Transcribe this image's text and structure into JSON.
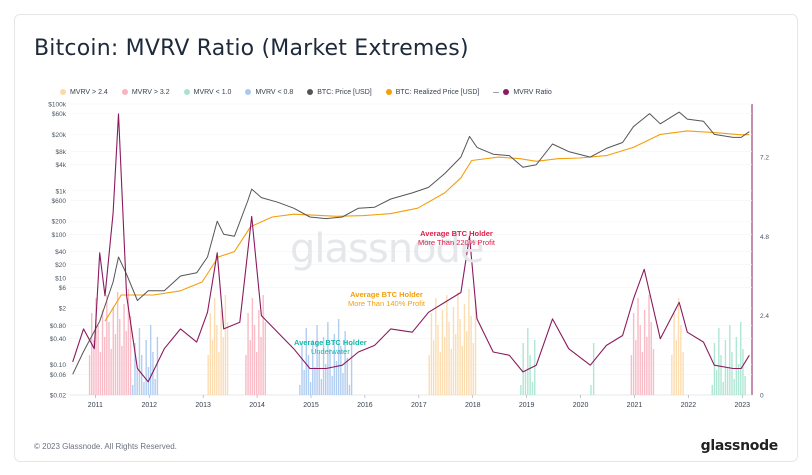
{
  "title": "Bitcoin: MVRV Ratio (Market Extremes)",
  "legend": [
    {
      "label": "MVRV > 2.4",
      "color": "#fcd9a8"
    },
    {
      "label": "MVRV > 3.2",
      "color": "#f8b4c0"
    },
    {
      "label": "MVRV < 1.0",
      "color": "#a7e3cf"
    },
    {
      "label": "MVRV < 0.8",
      "color": "#a9c8f0"
    },
    {
      "label": "BTC: Price [USD]",
      "color": "#555555"
    },
    {
      "label": "BTC: Realized Price [USD]",
      "color": "#f59e0b"
    },
    {
      "label": "MVRV Ratio",
      "color": "#8b1a5e"
    }
  ],
  "watermark": "glassnode",
  "annotations": {
    "high": "Average BTC Holder\nMore Than 220% Profit",
    "mid": "Average BTC Holder\nMore Than 140% Profit",
    "low": "Average BTC Holder\nUnderwater"
  },
  "footer": "© 2023 Glassnode. All Rights Reserved.",
  "brand": "glassnode",
  "chart_data": {
    "type": "line",
    "x_ticks": [
      "2011",
      "2012",
      "2013",
      "2014",
      "2015",
      "2016",
      "2017",
      "2018",
      "2019",
      "2020",
      "2021",
      "2022",
      "2023"
    ],
    "y_left_ticks": [
      "$100k",
      "$60k",
      "$20k",
      "$8k",
      "$4k",
      "$1k",
      "$600",
      "$200",
      "$100",
      "$40",
      "$20",
      "$10",
      "$6",
      "$2",
      "$0.80",
      "$0.40",
      "$0.10",
      "$0.06",
      "$0.02"
    ],
    "y_left_scale": "log",
    "y_right_ticks": [
      "7.2",
      "4.8",
      "2.4",
      "0"
    ],
    "y_right_range": [
      0,
      8.8
    ],
    "x_range": [
      2010.55,
      2023.2
    ],
    "series": [
      {
        "name": "BTC: Price [USD]",
        "color": "#555555",
        "points": [
          [
            2010.6,
            0.06
          ],
          [
            2010.8,
            0.2
          ],
          [
            2011.1,
            1
          ],
          [
            2011.35,
            8
          ],
          [
            2011.45,
            30
          ],
          [
            2011.6,
            12
          ],
          [
            2011.8,
            3
          ],
          [
            2012.0,
            5
          ],
          [
            2012.3,
            5
          ],
          [
            2012.6,
            11
          ],
          [
            2012.9,
            13
          ],
          [
            2013.1,
            30
          ],
          [
            2013.28,
            200
          ],
          [
            2013.4,
            100
          ],
          [
            2013.6,
            90
          ],
          [
            2013.85,
            600
          ],
          [
            2013.92,
            1100
          ],
          [
            2014.1,
            700
          ],
          [
            2014.4,
            550
          ],
          [
            2014.7,
            400
          ],
          [
            2015.0,
            250
          ],
          [
            2015.3,
            230
          ],
          [
            2015.6,
            250
          ],
          [
            2015.9,
            400
          ],
          [
            2016.2,
            420
          ],
          [
            2016.5,
            650
          ],
          [
            2016.9,
            900
          ],
          [
            2017.2,
            1200
          ],
          [
            2017.5,
            2500
          ],
          [
            2017.8,
            6000
          ],
          [
            2017.96,
            18000
          ],
          [
            2018.1,
            10000
          ],
          [
            2018.4,
            7000
          ],
          [
            2018.7,
            6500
          ],
          [
            2018.95,
            3500
          ],
          [
            2019.2,
            4000
          ],
          [
            2019.5,
            12000
          ],
          [
            2019.8,
            8000
          ],
          [
            2020.2,
            6000
          ],
          [
            2020.5,
            9500
          ],
          [
            2020.8,
            13000
          ],
          [
            2021.0,
            30000
          ],
          [
            2021.3,
            60000
          ],
          [
            2021.5,
            35000
          ],
          [
            2021.85,
            65000
          ],
          [
            2022.0,
            45000
          ],
          [
            2022.3,
            40000
          ],
          [
            2022.5,
            20000
          ],
          [
            2022.85,
            17000
          ],
          [
            2023.0,
            17000
          ],
          [
            2023.15,
            23000
          ]
        ]
      },
      {
        "name": "BTC: Realized Price [USD]",
        "color": "#f59e0b",
        "points": [
          [
            2011.2,
            1
          ],
          [
            2011.5,
            4
          ],
          [
            2011.8,
            4
          ],
          [
            2012.1,
            4
          ],
          [
            2012.6,
            5
          ],
          [
            2013.0,
            8
          ],
          [
            2013.3,
            30
          ],
          [
            2013.6,
            40
          ],
          [
            2013.9,
            150
          ],
          [
            2014.3,
            250
          ],
          [
            2014.7,
            290
          ],
          [
            2015.0,
            280
          ],
          [
            2015.5,
            260
          ],
          [
            2016.0,
            270
          ],
          [
            2016.5,
            300
          ],
          [
            2017.0,
            400
          ],
          [
            2017.5,
            900
          ],
          [
            2017.8,
            2000
          ],
          [
            2018.0,
            5000
          ],
          [
            2018.5,
            6000
          ],
          [
            2018.9,
            5500
          ],
          [
            2019.2,
            4800
          ],
          [
            2019.6,
            5500
          ],
          [
            2020.0,
            5700
          ],
          [
            2020.5,
            6500
          ],
          [
            2021.0,
            10000
          ],
          [
            2021.5,
            20000
          ],
          [
            2022.0,
            24000
          ],
          [
            2022.5,
            22000
          ],
          [
            2023.0,
            19500
          ],
          [
            2023.15,
            19800
          ]
        ]
      },
      {
        "name": "MVRV Ratio",
        "color": "#8b1a5e",
        "points": [
          [
            2010.6,
            1.0
          ],
          [
            2010.8,
            2.0
          ],
          [
            2011.0,
            1.4
          ],
          [
            2011.1,
            4.3
          ],
          [
            2011.2,
            3.0
          ],
          [
            2011.35,
            5.5
          ],
          [
            2011.45,
            8.5
          ],
          [
            2011.6,
            3.0
          ],
          [
            2011.8,
            0.8
          ],
          [
            2012.0,
            0.4
          ],
          [
            2012.3,
            1.4
          ],
          [
            2012.6,
            2.0
          ],
          [
            2012.9,
            1.6
          ],
          [
            2013.1,
            2.5
          ],
          [
            2013.28,
            4.3
          ],
          [
            2013.4,
            2.0
          ],
          [
            2013.7,
            2.2
          ],
          [
            2013.92,
            5.4
          ],
          [
            2014.1,
            2.4
          ],
          [
            2014.4,
            1.9
          ],
          [
            2014.7,
            1.4
          ],
          [
            2015.0,
            0.8
          ],
          [
            2015.3,
            0.8
          ],
          [
            2015.6,
            0.9
          ],
          [
            2015.9,
            1.3
          ],
          [
            2016.2,
            1.5
          ],
          [
            2016.5,
            2.0
          ],
          [
            2016.9,
            1.9
          ],
          [
            2017.2,
            2.5
          ],
          [
            2017.5,
            2.8
          ],
          [
            2017.8,
            3.1
          ],
          [
            2017.96,
            4.8
          ],
          [
            2018.1,
            2.3
          ],
          [
            2018.4,
            1.3
          ],
          [
            2018.7,
            1.2
          ],
          [
            2018.95,
            0.7
          ],
          [
            2019.2,
            0.9
          ],
          [
            2019.5,
            2.3
          ],
          [
            2019.8,
            1.4
          ],
          [
            2020.2,
            0.9
          ],
          [
            2020.5,
            1.5
          ],
          [
            2020.8,
            1.8
          ],
          [
            2021.0,
            2.9
          ],
          [
            2021.2,
            3.8
          ],
          [
            2021.5,
            1.7
          ],
          [
            2021.85,
            2.8
          ],
          [
            2022.0,
            1.9
          ],
          [
            2022.3,
            1.6
          ],
          [
            2022.5,
            0.9
          ],
          [
            2022.85,
            0.8
          ],
          [
            2023.0,
            0.8
          ],
          [
            2023.15,
            1.2
          ]
        ]
      }
    ],
    "bands": [
      {
        "from": 2010.9,
        "to": 2011.7,
        "class": "MVRV > 3.2"
      },
      {
        "from": 2011.7,
        "to": 2012.2,
        "class": "MVRV < 0.8"
      },
      {
        "from": 2013.1,
        "to": 2013.5,
        "class": "MVRV > 2.4"
      },
      {
        "from": 2013.8,
        "to": 2014.2,
        "class": "MVRV > 3.2"
      },
      {
        "from": 2014.8,
        "to": 2015.8,
        "class": "MVRV < 0.8"
      },
      {
        "from": 2017.2,
        "to": 2018.1,
        "class": "MVRV > 2.4"
      },
      {
        "from": 2018.9,
        "to": 2019.2,
        "class": "MVRV < 1.0"
      },
      {
        "from": 2020.2,
        "to": 2020.3,
        "class": "MVRV < 1.0"
      },
      {
        "from": 2020.95,
        "to": 2021.4,
        "class": "MVRV > 3.2"
      },
      {
        "from": 2021.7,
        "to": 2021.95,
        "class": "MVRV > 2.4"
      },
      {
        "from": 2022.45,
        "to": 2023.1,
        "class": "MVRV < 1.0"
      }
    ],
    "grid": true,
    "legend_position": "top"
  }
}
